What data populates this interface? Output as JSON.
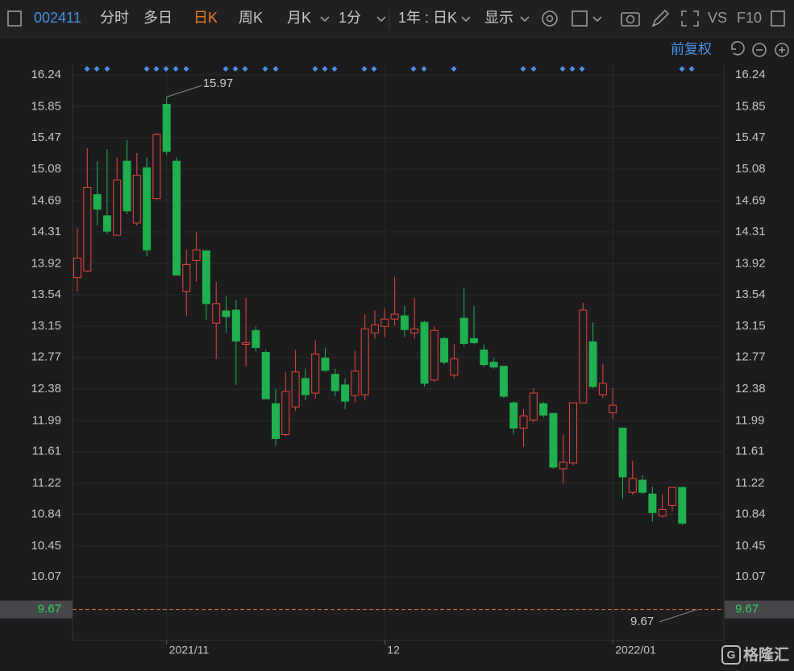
{
  "toolbar": {
    "code": "002411",
    "tabs": [
      "分时",
      "多日",
      "日K",
      "周K",
      "月K"
    ],
    "interval": "1分",
    "range": "1年 : 日K",
    "display": "显示",
    "vs": "VS",
    "f10": "F10"
  },
  "adjust": "前复权",
  "watermark": "格隆汇",
  "chart_data": {
    "type": "candlestick",
    "categories": [
      null,
      null,
      null,
      null,
      null,
      null,
      null,
      null,
      null,
      "2021/11",
      null,
      null,
      null,
      null,
      null,
      null,
      null,
      null,
      null,
      null,
      null,
      null,
      null,
      null,
      null,
      null,
      null,
      null,
      null,
      null,
      null,
      "12",
      null,
      null,
      null,
      null,
      null,
      null,
      null,
      null,
      null,
      null,
      null,
      null,
      null,
      null,
      null,
      null,
      null,
      null,
      null,
      null,
      null,
      null,
      "2022/01",
      null,
      null,
      null,
      null,
      null,
      null,
      null
    ],
    "open": [
      13.75,
      13.83,
      14.77,
      14.51,
      14.27,
      15.18,
      14.42,
      15.1,
      14.72,
      15.88,
      15.18,
      13.58,
      13.96,
      14.08,
      13.19,
      13.34,
      13.35,
      12.93,
      13.1,
      12.83,
      12.2,
      11.82,
      12.16,
      12.51,
      12.33,
      12.76,
      12.56,
      12.43,
      12.3,
      12.31,
      13.07,
      13.15,
      13.24,
      13.28,
      13.07,
      13.2,
      12.49,
      13.0,
      12.55,
      13.25,
      13.0,
      12.86,
      12.71,
      12.66,
      12.21,
      11.9,
      12.0,
      12.2,
      12.08,
      11.4,
      11.47,
      12.21,
      12.96,
      12.31,
      12.09,
      11.9,
      11.11,
      11.26,
      11.09,
      10.82,
      10.95,
      11.17
    ],
    "high": [
      14.36,
      15.34,
      15.18,
      15.33,
      15.23,
      15.44,
      15.28,
      15.23,
      15.53,
      15.97,
      15.23,
      14.09,
      14.31,
      14.08,
      13.7,
      13.52,
      13.48,
      13.5,
      13.15,
      12.86,
      12.38,
      12.59,
      12.86,
      12.63,
      12.98,
      12.89,
      12.63,
      12.51,
      12.85,
      13.3,
      13.35,
      13.37,
      13.76,
      13.4,
      13.5,
      13.22,
      13.15,
      13.02,
      12.93,
      13.63,
      13.4,
      12.93,
      12.76,
      12.66,
      12.23,
      12.13,
      12.39,
      12.22,
      12.08,
      11.82,
      12.21,
      13.44,
      13.2,
      12.69,
      12.39,
      11.9,
      11.5,
      11.32,
      11.18,
      11.09,
      11.17,
      11.18
    ],
    "low": [
      13.58,
      13.82,
      14.39,
      14.28,
      14.27,
      14.53,
      14.39,
      14.01,
      14.71,
      15.26,
      13.78,
      13.28,
      13.7,
      13.23,
      12.75,
      13.07,
      12.43,
      12.66,
      12.84,
      12.26,
      11.69,
      11.8,
      12.11,
      12.24,
      12.26,
      12.59,
      12.29,
      12.13,
      12.21,
      12.24,
      13.0,
      13.02,
      13.16,
      13.02,
      13.0,
      12.41,
      12.47,
      12.68,
      12.51,
      12.9,
      12.93,
      12.65,
      12.63,
      12.27,
      11.82,
      11.67,
      11.97,
      12.03,
      11.4,
      11.22,
      11.44,
      12.21,
      12.39,
      12.27,
      12.01,
      11.03,
      11.08,
      11.09,
      10.75,
      10.8,
      10.88,
      10.71
    ],
    "close": [
      13.99,
      14.86,
      14.59,
      14.32,
      14.95,
      14.57,
      15.01,
      14.09,
      15.51,
      15.3,
      13.78,
      13.91,
      14.09,
      13.43,
      13.43,
      13.27,
      12.97,
      12.95,
      12.89,
      12.26,
      11.77,
      12.35,
      12.59,
      12.31,
      12.81,
      12.61,
      12.36,
      12.23,
      12.6,
      13.12,
      13.17,
      13.24,
      13.3,
      13.11,
      13.12,
      12.45,
      13.1,
      12.71,
      12.75,
      12.94,
      12.95,
      12.68,
      12.65,
      12.29,
      11.9,
      12.05,
      12.33,
      12.06,
      11.42,
      11.48,
      12.21,
      13.35,
      12.41,
      12.45,
      12.18,
      11.3,
      11.28,
      11.11,
      10.86,
      10.9,
      11.17,
      10.73
    ],
    "up_color": "#e8453c",
    "down_color": "#1fb04f",
    "ylim": [
      9.29,
      16.37
    ],
    "yticks": [
      16.24,
      15.85,
      15.47,
      15.08,
      14.69,
      14.31,
      13.92,
      13.54,
      13.15,
      12.77,
      12.38,
      11.99,
      11.61,
      11.22,
      10.84,
      10.45,
      10.07
    ],
    "max_label": 15.97,
    "price_line": 9.67,
    "price_line_color": "#e0742c",
    "grid": true
  }
}
